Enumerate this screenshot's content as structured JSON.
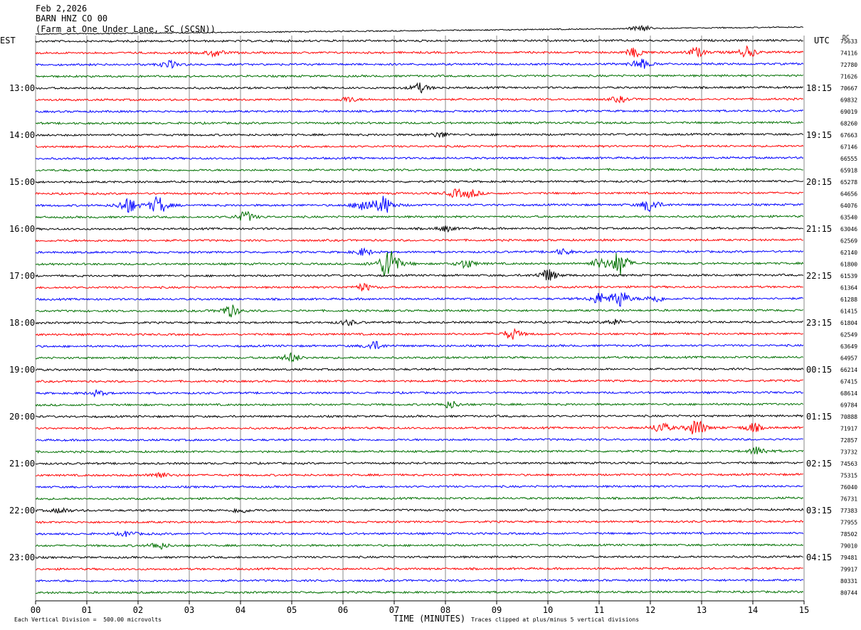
{
  "header": {
    "date": "Feb 2,2026",
    "station": "BARN HNZ CO 00",
    "location": "(Farm at One Under Lane, SC (SCSN))"
  },
  "left_tz": "EST",
  "right_tz": "UTC",
  "dc_label": "DC",
  "footer": {
    "xlabel": "TIME (MINUTES)",
    "scale_note": "Each Vertical Division =  500.00 microvolts",
    "clip_note": "Traces clipped at plus/minus 5 vertical divisions"
  },
  "colors": {
    "trace_cycle": [
      "#000000",
      "#ff0000",
      "#0000ff",
      "#007000"
    ],
    "grid": "#8a8a8a"
  },
  "chart_data": {
    "type": "line",
    "title": "BARN HNZ CO 00",
    "xlabel": "TIME (MINUTES)",
    "xlim": [
      0,
      15
    ],
    "x_ticks": [
      "00",
      "01",
      "02",
      "03",
      "04",
      "05",
      "06",
      "07",
      "08",
      "09",
      "10",
      "11",
      "12",
      "13",
      "14",
      "15"
    ],
    "row_minutes": 15,
    "left_hour_labels": [
      "13:00",
      "14:00",
      "15:00",
      "16:00",
      "17:00",
      "18:00",
      "19:00",
      "20:00",
      "21:00",
      "22:00",
      "23:00"
    ],
    "right_hour_labels": [
      "18:15",
      "19:15",
      "20:15",
      "21:15",
      "22:15",
      "23:15",
      "00:15",
      "01:15",
      "02:15",
      "03:15",
      "04:15"
    ],
    "dc_offsets": [
      75633,
      74116,
      72780,
      71626,
      70667,
      69832,
      69019,
      68260,
      67663,
      67146,
      66555,
      65918,
      65278,
      64656,
      64076,
      63540,
      63046,
      62569,
      62140,
      61800,
      61539,
      61364,
      61288,
      61415,
      61804,
      62549,
      63649,
      64957,
      66214,
      67415,
      68614,
      69784,
      70888,
      71917,
      72857,
      73732,
      74563,
      75315,
      76040,
      76731,
      77383,
      77955,
      78502,
      79010,
      79481,
      79917,
      80331,
      80744
    ],
    "events": [
      {
        "row": 2,
        "minute": 11.8,
        "amp": 6
      },
      {
        "row": 1,
        "minute": 3.5,
        "amp": 4
      },
      {
        "row": 1,
        "minute": 11.7,
        "amp": 5
      },
      {
        "row": 1,
        "minute": 13.9,
        "amp": 6
      },
      {
        "row": 1,
        "minute": 12.9,
        "amp": 5
      },
      {
        "row": 2,
        "minute": 2.6,
        "amp": 4
      },
      {
        "row": 4,
        "minute": 7.5,
        "amp": 5
      },
      {
        "row": 5,
        "minute": 6.1,
        "amp": 3
      },
      {
        "row": 5,
        "minute": 11.4,
        "amp": 3
      },
      {
        "row": 8,
        "minute": 7.9,
        "amp": 3
      },
      {
        "row": 13,
        "minute": 8.5,
        "amp": 4
      },
      {
        "row": 13,
        "minute": 8.2,
        "amp": 4
      },
      {
        "row": 14,
        "minute": 1.8,
        "amp": 9
      },
      {
        "row": 14,
        "minute": 2.4,
        "amp": 10
      },
      {
        "row": 14,
        "minute": 6.4,
        "amp": 8
      },
      {
        "row": 14,
        "minute": 6.8,
        "amp": 10
      },
      {
        "row": 14,
        "minute": 12.0,
        "amp": 8
      },
      {
        "row": 15,
        "minute": 4.1,
        "amp": 6
      },
      {
        "row": 16,
        "minute": 8.0,
        "amp": 3
      },
      {
        "row": 18,
        "minute": 6.4,
        "amp": 4
      },
      {
        "row": 18,
        "minute": 10.3,
        "amp": 3
      },
      {
        "row": 19,
        "minute": 6.9,
        "amp": 22
      },
      {
        "row": 19,
        "minute": 8.4,
        "amp": 5
      },
      {
        "row": 19,
        "minute": 11.0,
        "amp": 5
      },
      {
        "row": 19,
        "minute": 11.4,
        "amp": 14
      },
      {
        "row": 20,
        "minute": 10.0,
        "amp": 7
      },
      {
        "row": 21,
        "minute": 6.4,
        "amp": 4
      },
      {
        "row": 22,
        "minute": 11.4,
        "amp": 10
      },
      {
        "row": 22,
        "minute": 11.0,
        "amp": 6
      },
      {
        "row": 22,
        "minute": 12.1,
        "amp": 4
      },
      {
        "row": 23,
        "minute": 3.8,
        "amp": 7
      },
      {
        "row": 24,
        "minute": 6.1,
        "amp": 3
      },
      {
        "row": 24,
        "minute": 11.3,
        "amp": 3
      },
      {
        "row": 25,
        "minute": 9.3,
        "amp": 6
      },
      {
        "row": 26,
        "minute": 6.6,
        "amp": 5
      },
      {
        "row": 27,
        "minute": 5.0,
        "amp": 5
      },
      {
        "row": 30,
        "minute": 1.2,
        "amp": 3
      },
      {
        "row": 31,
        "minute": 8.1,
        "amp": 4
      },
      {
        "row": 33,
        "minute": 12.2,
        "amp": 6
      },
      {
        "row": 33,
        "minute": 12.9,
        "amp": 10
      },
      {
        "row": 33,
        "minute": 14.0,
        "amp": 5
      },
      {
        "row": 35,
        "minute": 14.1,
        "amp": 5
      },
      {
        "row": 37,
        "minute": 2.4,
        "amp": 4
      },
      {
        "row": 40,
        "minute": 0.5,
        "amp": 3
      },
      {
        "row": 40,
        "minute": 4.0,
        "amp": 3
      },
      {
        "row": 42,
        "minute": 1.8,
        "amp": 3
      },
      {
        "row": 43,
        "minute": 2.4,
        "amp": 4
      }
    ]
  }
}
